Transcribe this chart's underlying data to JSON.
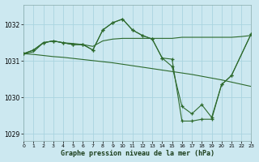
{
  "background_color": "#cce8f0",
  "grid_color": "#aad4e0",
  "line_color": "#2d6a2d",
  "title": "Graphe pression niveau de la mer (hPa)",
  "xlim": [
    0,
    23
  ],
  "ylim": [
    1028.8,
    1032.55
  ],
  "yticks": [
    1029,
    1030,
    1031,
    1032
  ],
  "xticks": [
    0,
    1,
    2,
    3,
    4,
    5,
    6,
    7,
    8,
    9,
    10,
    11,
    12,
    13,
    14,
    15,
    16,
    17,
    18,
    19,
    20,
    21,
    22,
    23
  ],
  "series": [
    {
      "x": [
        0,
        1,
        2,
        3,
        4,
        5,
        6,
        7,
        8,
        9,
        10,
        11,
        12,
        13,
        14,
        15,
        16,
        17,
        18,
        19,
        20,
        21,
        22,
        23
      ],
      "y": [
        1031.2,
        1031.25,
        1031.5,
        1031.55,
        1031.5,
        1031.48,
        1031.45,
        1031.4,
        1031.55,
        1031.6,
        1031.62,
        1031.62,
        1031.62,
        1031.62,
        1031.62,
        1031.62,
        1031.65,
        1031.65,
        1031.65,
        1031.65,
        1031.65,
        1031.65,
        1031.67,
        1031.7
      ],
      "has_markers": false
    },
    {
      "x": [
        0,
        1,
        2,
        3,
        4,
        5,
        6,
        7,
        8,
        9,
        10,
        11,
        12,
        13,
        14,
        15,
        16,
        17,
        18,
        19,
        20,
        21,
        22,
        23
      ],
      "y": [
        1031.2,
        1031.18,
        1031.15,
        1031.12,
        1031.1,
        1031.07,
        1031.04,
        1031.01,
        1030.98,
        1030.95,
        1030.91,
        1030.87,
        1030.83,
        1030.79,
        1030.75,
        1030.71,
        1030.67,
        1030.63,
        1030.58,
        1030.53,
        1030.48,
        1030.42,
        1030.36,
        1030.3
      ],
      "has_markers": false
    },
    {
      "x": [
        0,
        1,
        2,
        3,
        4,
        5,
        6,
        7,
        8,
        9,
        10,
        11,
        12,
        13,
        14,
        15,
        16,
        17,
        18,
        19,
        20,
        21,
        23
      ],
      "y": [
        1031.2,
        1031.3,
        1031.5,
        1031.55,
        1031.5,
        1031.45,
        1031.45,
        1031.3,
        1031.85,
        1032.05,
        1032.15,
        1031.85,
        1031.7,
        1031.6,
        1031.08,
        1030.85,
        1029.75,
        1029.55,
        1029.8,
        1029.45,
        1030.35,
        1030.6,
        1031.75
      ],
      "has_markers": true
    },
    {
      "x": [
        0,
        1,
        2,
        3,
        4,
        5,
        6,
        7,
        8,
        9,
        10,
        11,
        12,
        13,
        14,
        15,
        16,
        17,
        18,
        19,
        20,
        21,
        23
      ],
      "y": [
        1031.2,
        1031.3,
        1031.5,
        1031.55,
        1031.5,
        1031.45,
        1031.45,
        1031.3,
        1031.85,
        1032.05,
        1032.15,
        1031.85,
        1031.7,
        1031.6,
        1031.08,
        1031.05,
        1029.35,
        1029.35,
        1029.4,
        1029.4,
        1030.35,
        1030.6,
        1031.75
      ],
      "has_markers": true
    }
  ]
}
